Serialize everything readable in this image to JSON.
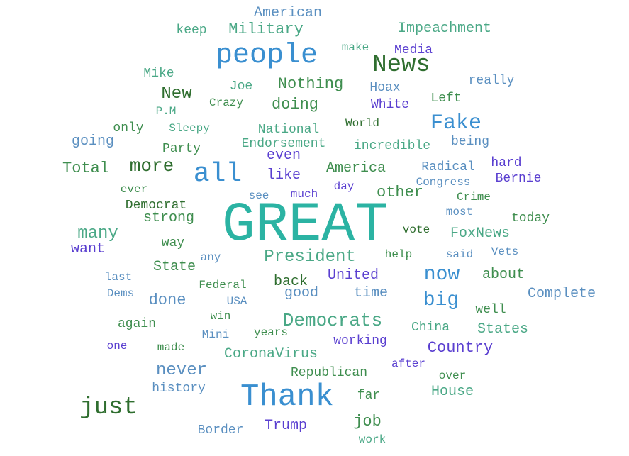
{
  "colors": {
    "teal": "#2bb3a3",
    "blue": "#3a8fd0",
    "darkgreen": "#2f6e2f",
    "green": "#3f8e4f",
    "seagreen": "#4aa886",
    "steel": "#5a8fc0",
    "purple": "#5a3fd0"
  },
  "words": [
    {
      "text": "GREAT",
      "color": "teal"
    },
    {
      "text": "Thank",
      "color": "blue"
    },
    {
      "text": "people",
      "color": "blue"
    },
    {
      "text": "all",
      "color": "blue"
    },
    {
      "text": "News",
      "color": "darkgreen"
    },
    {
      "text": "just",
      "color": "darkgreen"
    },
    {
      "text": "Fake",
      "color": "blue"
    },
    {
      "text": "more",
      "color": "darkgreen"
    },
    {
      "text": "Democrats",
      "color": "seagreen"
    },
    {
      "text": "President",
      "color": "seagreen"
    },
    {
      "text": "Military",
      "color": "seagreen"
    },
    {
      "text": "American",
      "color": "steel"
    },
    {
      "text": "Impeachment",
      "color": "seagreen"
    },
    {
      "text": "New",
      "color": "darkgreen"
    },
    {
      "text": "Nothing",
      "color": "green"
    },
    {
      "text": "doing",
      "color": "green"
    },
    {
      "text": "Media",
      "color": "purple"
    },
    {
      "text": "keep",
      "color": "seagreen"
    },
    {
      "text": "make",
      "color": "seagreen"
    },
    {
      "text": "Mike",
      "color": "seagreen"
    },
    {
      "text": "Joe",
      "color": "seagreen"
    },
    {
      "text": "Hoax",
      "color": "steel"
    },
    {
      "text": "really",
      "color": "steel"
    },
    {
      "text": "Left",
      "color": "green"
    },
    {
      "text": "P.M",
      "color": "seagreen"
    },
    {
      "text": "Crazy",
      "color": "green"
    },
    {
      "text": "White",
      "color": "purple"
    },
    {
      "text": "only",
      "color": "green"
    },
    {
      "text": "Sleepy",
      "color": "seagreen"
    },
    {
      "text": "National",
      "color": "seagreen"
    },
    {
      "text": "World",
      "color": "darkgreen"
    },
    {
      "text": "going",
      "color": "steel"
    },
    {
      "text": "Party",
      "color": "green"
    },
    {
      "text": "Endorsement",
      "color": "seagreen"
    },
    {
      "text": "incredible",
      "color": "seagreen"
    },
    {
      "text": "being",
      "color": "steel"
    },
    {
      "text": "even",
      "color": "purple"
    },
    {
      "text": "hard",
      "color": "purple"
    },
    {
      "text": "Total",
      "color": "green"
    },
    {
      "text": "like",
      "color": "purple"
    },
    {
      "text": "America",
      "color": "green"
    },
    {
      "text": "Radical",
      "color": "steel"
    },
    {
      "text": "Bernie",
      "color": "purple"
    },
    {
      "text": "ever",
      "color": "green"
    },
    {
      "text": "see",
      "color": "steel"
    },
    {
      "text": "much",
      "color": "purple"
    },
    {
      "text": "day",
      "color": "purple"
    },
    {
      "text": "other",
      "color": "green"
    },
    {
      "text": "Congress",
      "color": "steel"
    },
    {
      "text": "Crime",
      "color": "green"
    },
    {
      "text": "Democrat",
      "color": "darkgreen"
    },
    {
      "text": "most",
      "color": "steel"
    },
    {
      "text": "strong",
      "color": "green"
    },
    {
      "text": "today",
      "color": "green"
    },
    {
      "text": "many",
      "color": "seagreen"
    },
    {
      "text": "vote",
      "color": "darkgreen"
    },
    {
      "text": "FoxNews",
      "color": "seagreen"
    },
    {
      "text": "want",
      "color": "purple"
    },
    {
      "text": "way",
      "color": "green"
    },
    {
      "text": "any",
      "color": "steel"
    },
    {
      "text": "help",
      "color": "green"
    },
    {
      "text": "said",
      "color": "steel"
    },
    {
      "text": "Vets",
      "color": "steel"
    },
    {
      "text": "State",
      "color": "green"
    },
    {
      "text": "now",
      "color": "blue"
    },
    {
      "text": "last",
      "color": "steel"
    },
    {
      "text": "United",
      "color": "purple"
    },
    {
      "text": "about",
      "color": "green"
    },
    {
      "text": "back",
      "color": "darkgreen"
    },
    {
      "text": "Federal",
      "color": "green"
    },
    {
      "text": "Dems",
      "color": "steel"
    },
    {
      "text": "done",
      "color": "steel"
    },
    {
      "text": "USA",
      "color": "steel"
    },
    {
      "text": "good",
      "color": "steel"
    },
    {
      "text": "time",
      "color": "steel"
    },
    {
      "text": "big",
      "color": "blue"
    },
    {
      "text": "Complete",
      "color": "steel"
    },
    {
      "text": "win",
      "color": "green"
    },
    {
      "text": "well",
      "color": "green"
    },
    {
      "text": "again",
      "color": "green"
    },
    {
      "text": "Mini",
      "color": "steel"
    },
    {
      "text": "years",
      "color": "green"
    },
    {
      "text": "China",
      "color": "seagreen"
    },
    {
      "text": "States",
      "color": "seagreen"
    },
    {
      "text": "working",
      "color": "purple"
    },
    {
      "text": "one",
      "color": "purple"
    },
    {
      "text": "made",
      "color": "green"
    },
    {
      "text": "CoronaVirus",
      "color": "seagreen"
    },
    {
      "text": "Country",
      "color": "purple"
    },
    {
      "text": "never",
      "color": "steel"
    },
    {
      "text": "after",
      "color": "purple"
    },
    {
      "text": "Republican",
      "color": "green"
    },
    {
      "text": "over",
      "color": "green"
    },
    {
      "text": "history",
      "color": "steel"
    },
    {
      "text": "House",
      "color": "seagreen"
    },
    {
      "text": "far",
      "color": "green"
    },
    {
      "text": "job",
      "color": "green"
    },
    {
      "text": "Border",
      "color": "steel"
    },
    {
      "text": "Trump",
      "color": "purple"
    },
    {
      "text": "work",
      "color": "seagreen"
    }
  ]
}
